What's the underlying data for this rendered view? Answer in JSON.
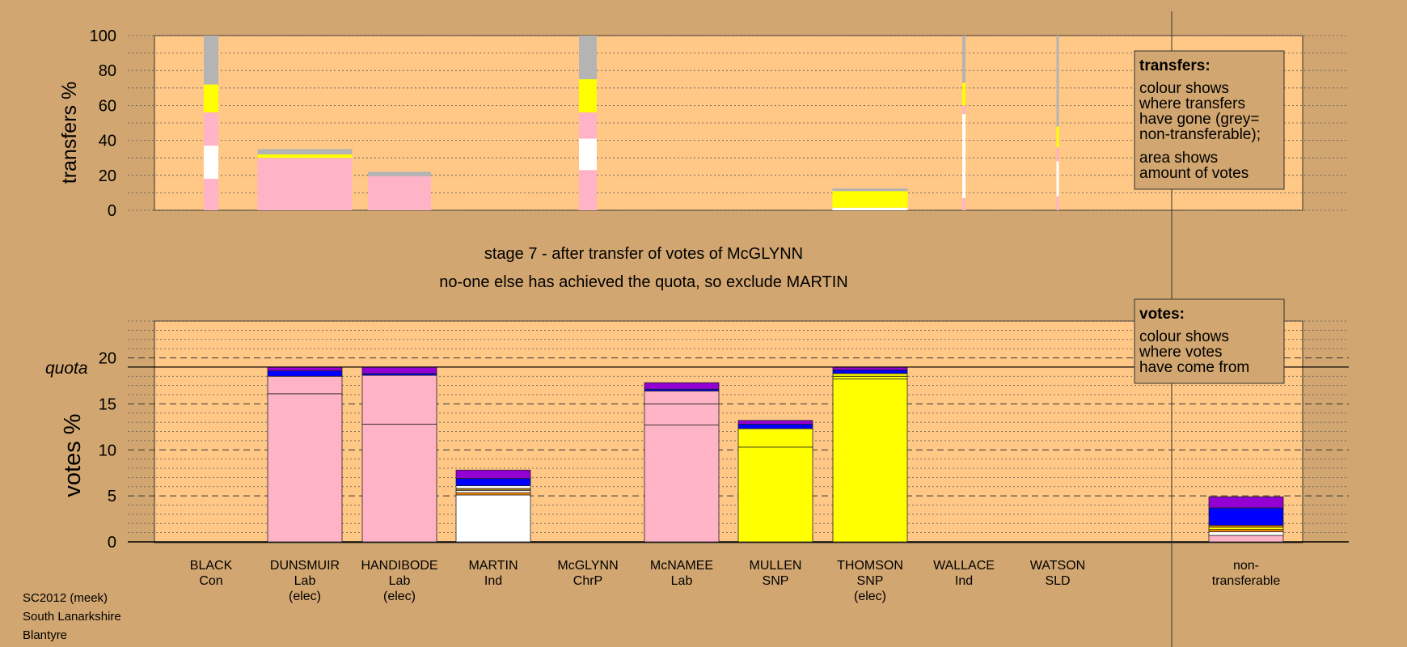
{
  "chart_data": [
    {
      "type": "bar",
      "stacked": true,
      "ylabel": "transfers %",
      "ylim": [
        0,
        100
      ],
      "yticks": [
        0,
        20,
        40,
        60,
        80,
        100
      ],
      "categories": [
        "BLACK",
        "DUNSMUIR",
        "HANDIBODE",
        "MARTIN",
        "McGLYNN",
        "McNAMEE",
        "MULLEN",
        "THOMSON",
        "WALLACE",
        "WATSON"
      ],
      "colors": {
        "Lab": "#ffb3c6",
        "Ind": "#ffffff",
        "SNP": "#ffff00",
        "non-transferable": "#b4b4b4",
        "Con": "#0000ff",
        "ChrP": "#9400d3"
      },
      "bars": [
        {
          "candidate": "BLACK",
          "segments": [
            [
              "Lab",
              18
            ],
            [
              "Ind",
              19
            ],
            [
              "Lab",
              19
            ],
            [
              "SNP",
              16
            ],
            [
              "non-transferable",
              28
            ]
          ]
        },
        {
          "candidate": "DUNSMUIR",
          "segments": [
            [
              "Lab",
              22
            ],
            [
              "Lab",
              8
            ],
            [
              "SNP",
              2
            ],
            [
              "non-transferable",
              3
            ]
          ]
        },
        {
          "candidate": "HANDIBODE",
          "segments": [
            [
              "Lab",
              11
            ],
            [
              "Lab",
              8.5
            ],
            [
              "non-transferable",
              2.5
            ]
          ]
        },
        {
          "candidate": "McGLYNN",
          "segments": [
            [
              "Lab",
              23
            ],
            [
              "Ind",
              18
            ],
            [
              "Lab",
              15
            ],
            [
              "SNP",
              19
            ],
            [
              "non-transferable",
              25
            ]
          ]
        },
        {
          "candidate": "THOMSON",
          "segments": [
            [
              "Ind",
              1.5
            ],
            [
              "SNP",
              9.5
            ],
            [
              "non-transferable",
              1.5
            ]
          ]
        },
        {
          "candidate": "WALLACE",
          "segments": [
            [
              "Lab",
              7
            ],
            [
              "Ind",
              48
            ],
            [
              "Lab",
              5
            ],
            [
              "SNP",
              13
            ],
            [
              "non-transferable",
              27
            ]
          ]
        },
        {
          "candidate": "WATSON",
          "segments": [
            [
              "Lab",
              8
            ],
            [
              "Ind",
              20
            ],
            [
              "Lab",
              8
            ],
            [
              "SNP",
              12
            ],
            [
              "non-transferable",
              52
            ]
          ]
        }
      ]
    },
    {
      "type": "bar",
      "stacked": true,
      "ylabel": "votes %",
      "ylim": [
        0,
        24
      ],
      "yticks": [
        0,
        5,
        10,
        15,
        20
      ],
      "quota": 19.0,
      "quota_label": "quota",
      "categories": [
        "BLACK",
        "DUNSMUIR",
        "HANDIBODE",
        "MARTIN",
        "McGLYNN",
        "McNAMEE",
        "MULLEN",
        "THOMSON",
        "WALLACE",
        "WATSON",
        "non-transferable"
      ],
      "bars": [
        {
          "candidate": "BLACK",
          "segments": []
        },
        {
          "candidate": "DUNSMUIR",
          "segments": [
            [
              "#ffb3c6",
              16.1
            ],
            [
              "#ffb3c6",
              1.9
            ],
            [
              "#0000ff",
              0.6
            ],
            [
              "#9400d3",
              0.4
            ]
          ]
        },
        {
          "candidate": "HANDIBODE",
          "segments": [
            [
              "#ffb3c6",
              12.8
            ],
            [
              "#ffb3c6",
              5.3
            ],
            [
              "#0000ff",
              0.2
            ],
            [
              "#9400d3",
              0.7
            ]
          ]
        },
        {
          "candidate": "MARTIN",
          "segments": [
            [
              "#ffffff",
              5.1
            ],
            [
              "#ff8c00",
              0.25
            ],
            [
              "#ffffff",
              0.25
            ],
            [
              "#b8860b",
              0.2
            ],
            [
              "#ffffff",
              0.3
            ],
            [
              "#0000ff",
              0.8
            ],
            [
              "#9400d3",
              0.9
            ]
          ]
        },
        {
          "candidate": "McGLYNN",
          "segments": []
        },
        {
          "candidate": "McNAMEE",
          "segments": [
            [
              "#ffb3c6",
              12.7
            ],
            [
              "#ffb3c6",
              2.3
            ],
            [
              "#ffb3c6",
              1.4
            ],
            [
              "#0000ff",
              0.2
            ],
            [
              "#9400d3",
              0.7
            ]
          ]
        },
        {
          "candidate": "MULLEN",
          "segments": [
            [
              "#ffff00",
              10.3
            ],
            [
              "#ffff00",
              2.0
            ],
            [
              "#0000ff",
              0.5
            ],
            [
              "#9400d3",
              0.4
            ]
          ]
        },
        {
          "candidate": "THOMSON",
          "segments": [
            [
              "#ffff00",
              17.7
            ],
            [
              "#ffff00",
              0.3
            ],
            [
              "#ffff00",
              0.3
            ],
            [
              "#0000ff",
              0.4
            ],
            [
              "#9400d3",
              0.3
            ]
          ]
        },
        {
          "candidate": "WALLACE",
          "segments": []
        },
        {
          "candidate": "WATSON",
          "segments": []
        },
        {
          "candidate": "non-transferable",
          "segments": [
            [
              "#ffb3c6",
              0.7
            ],
            [
              "#ffffff",
              0.4
            ],
            [
              "#ff8c00",
              0.25
            ],
            [
              "#ffff00",
              0.25
            ],
            [
              "#ff8c00",
              0.2
            ],
            [
              "#0000ff",
              1.9
            ],
            [
              "#9400d3",
              1.2
            ]
          ]
        }
      ]
    }
  ],
  "candidates": [
    {
      "name": "BLACK",
      "party": "Con",
      "note": ""
    },
    {
      "name": "DUNSMUIR",
      "party": "Lab",
      "note": "(elec)"
    },
    {
      "name": "HANDIBODE",
      "party": "Lab",
      "note": "(elec)"
    },
    {
      "name": "MARTIN",
      "party": "Ind",
      "note": ""
    },
    {
      "name": "McGLYNN",
      "party": "ChrP",
      "note": ""
    },
    {
      "name": "McNAMEE",
      "party": "Lab",
      "note": ""
    },
    {
      "name": "MULLEN",
      "party": "SNP",
      "note": ""
    },
    {
      "name": "THOMSON",
      "party": "SNP",
      "note": "(elec)"
    },
    {
      "name": "WALLACE",
      "party": "Ind",
      "note": ""
    },
    {
      "name": "WATSON",
      "party": "SLD",
      "note": ""
    }
  ],
  "nontransferable_label": {
    "line1": "non-",
    "line2": "transferable"
  },
  "stage_title": "stage 7 - after transfer of votes of McGLYNN",
  "stage_subtitle": "no-one else has achieved the quota, so exclude MARTIN",
  "legend_transfers": {
    "heading": "transfers:",
    "lines": [
      "colour shows",
      "where transfers",
      "have gone (grey=",
      "non-transferable);",
      "area shows",
      "amount of votes"
    ]
  },
  "legend_votes": {
    "heading": "votes:",
    "lines": [
      "colour shows",
      "where votes",
      "have come from"
    ]
  },
  "footer": [
    "SC2012 (meek)",
    "South Lanarkshire",
    "Blantyre"
  ],
  "colors": {
    "background": "#d2a670",
    "panel": "#ffc887",
    "legend_box": "#d2a670"
  }
}
